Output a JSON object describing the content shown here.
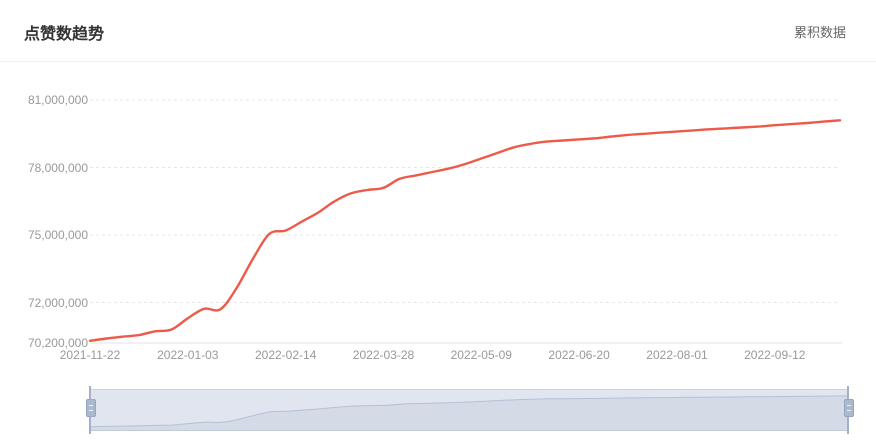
{
  "header": {
    "title": "点赞数趋势",
    "mode_label": "累积数据"
  },
  "colors": {
    "line": "#ee5a49",
    "grid": "#e7e7e7",
    "axis_text": "#999999",
    "title_text": "#333333",
    "mode_text": "#666666",
    "slider_fill": "#e0e5ef",
    "slider_handle": "#aab9cd"
  },
  "chart_data": {
    "type": "line",
    "title": "点赞数趋势",
    "series_name": "累积数据",
    "smooth": true,
    "grid": "dashed-horizontal",
    "legend_position": "top-right",
    "line_color": "#ee5a49",
    "x": [
      "2021-11-22",
      "2021-11-29",
      "2021-12-06",
      "2021-12-13",
      "2021-12-20",
      "2021-12-27",
      "2022-01-03",
      "2022-01-10",
      "2022-01-17",
      "2022-01-24",
      "2022-01-31",
      "2022-02-07",
      "2022-02-14",
      "2022-02-21",
      "2022-02-28",
      "2022-03-07",
      "2022-03-14",
      "2022-03-21",
      "2022-03-28",
      "2022-04-04",
      "2022-04-11",
      "2022-04-18",
      "2022-04-25",
      "2022-05-02",
      "2022-05-09",
      "2022-05-16",
      "2022-05-23",
      "2022-05-30",
      "2022-06-06",
      "2022-06-13",
      "2022-06-20",
      "2022-06-27",
      "2022-07-04",
      "2022-07-11",
      "2022-07-18",
      "2022-07-25",
      "2022-08-01",
      "2022-08-08",
      "2022-08-15",
      "2022-08-22",
      "2022-08-29",
      "2022-09-05",
      "2022-09-12",
      "2022-09-19",
      "2022-09-26",
      "2022-10-03",
      "2022-10-10"
    ],
    "values": [
      70300000,
      70400000,
      70480000,
      70550000,
      70720000,
      70800000,
      71300000,
      71720000,
      71700000,
      72650000,
      73950000,
      75050000,
      75200000,
      75600000,
      76000000,
      76500000,
      76850000,
      77000000,
      77100000,
      77500000,
      77650000,
      77800000,
      77950000,
      78150000,
      78400000,
      78650000,
      78900000,
      79050000,
      79150000,
      79200000,
      79250000,
      79300000,
      79380000,
      79450000,
      79500000,
      79550000,
      79600000,
      79650000,
      79700000,
      79740000,
      79780000,
      79820000,
      79880000,
      79930000,
      79980000,
      80040000,
      80100000
    ],
    "x_tick_indices": [
      0,
      6,
      12,
      18,
      24,
      30,
      36,
      42
    ],
    "x_tick_labels": [
      "2021-11-22",
      "2022-01-03",
      "2022-02-14",
      "2022-03-28",
      "2022-05-09",
      "2022-06-20",
      "2022-08-01",
      "2022-09-12"
    ],
    "y_ticks": [
      70200000,
      72000000,
      75000000,
      78000000,
      81000000
    ],
    "y_tick_labels": [
      "70,200,000",
      "72,000,000",
      "75,000,000",
      "78,000,000",
      "81,000,000"
    ],
    "ylim": [
      70200000,
      81000000
    ],
    "datazoom": {
      "start_percent": 0,
      "end_percent": 100
    }
  }
}
